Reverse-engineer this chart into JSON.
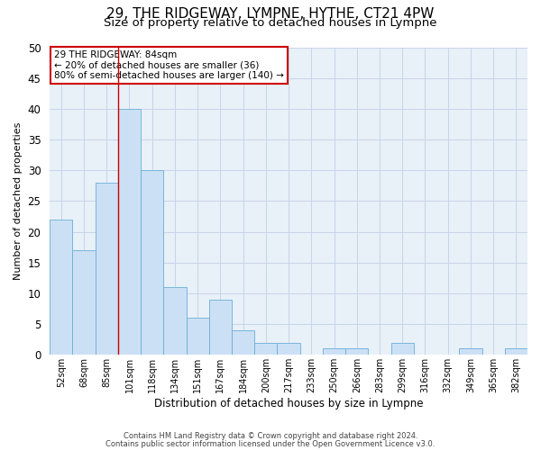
{
  "title1": "29, THE RIDGEWAY, LYMPNE, HYTHE, CT21 4PW",
  "title2": "Size of property relative to detached houses in Lympne",
  "xlabel": "Distribution of detached houses by size in Lympne",
  "ylabel": "Number of detached properties",
  "footer1": "Contains HM Land Registry data © Crown copyright and database right 2024.",
  "footer2": "Contains public sector information licensed under the Open Government Licence v3.0.",
  "annotation_line1": "29 THE RIDGEWAY: 84sqm",
  "annotation_line2": "← 20% of detached houses are smaller (36)",
  "annotation_line3": "80% of semi-detached houses are larger (140) →",
  "bar_color": "#cce0f5",
  "bar_edge_color": "#6aaed6",
  "vline_color": "#cc0000",
  "vline_x": 2.5,
  "categories": [
    "52sqm",
    "68sqm",
    "85sqm",
    "101sqm",
    "118sqm",
    "134sqm",
    "151sqm",
    "167sqm",
    "184sqm",
    "200sqm",
    "217sqm",
    "233sqm",
    "250sqm",
    "266sqm",
    "283sqm",
    "299sqm",
    "316sqm",
    "332sqm",
    "349sqm",
    "365sqm",
    "382sqm"
  ],
  "values": [
    22,
    17,
    28,
    40,
    30,
    11,
    6,
    9,
    4,
    2,
    2,
    0,
    1,
    1,
    0,
    2,
    0,
    0,
    1,
    0,
    1
  ],
  "ylim": [
    0,
    50
  ],
  "yticks": [
    0,
    5,
    10,
    15,
    20,
    25,
    30,
    35,
    40,
    45,
    50
  ],
  "bg_color": "#ffffff",
  "plot_bg_color": "#e8f0f8",
  "grid_color": "#c8d4e8",
  "title_fontsize": 11,
  "subtitle_fontsize": 9.5
}
